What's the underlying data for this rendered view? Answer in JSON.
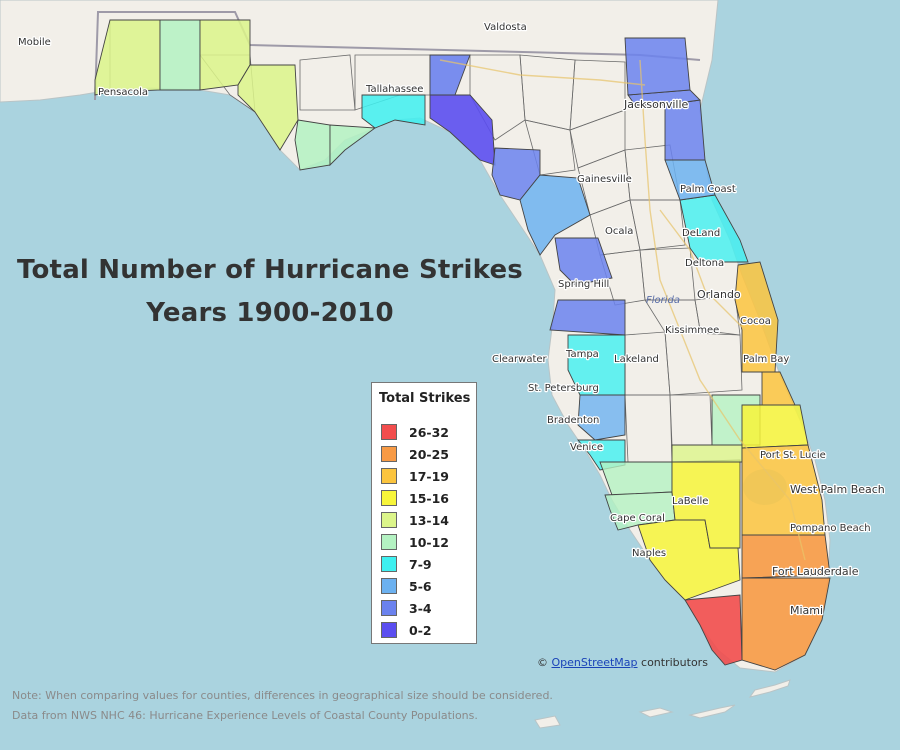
{
  "title": {
    "line1": "Total Number of Hurricane Strikes",
    "line2": "Years 1900-2010"
  },
  "legend": {
    "title": "Total Strikes",
    "items": [
      {
        "label": "26-32",
        "color": "#f24d4d"
      },
      {
        "label": "20-25",
        "color": "#f79a45"
      },
      {
        "label": "17-19",
        "color": "#fbc43e"
      },
      {
        "label": "15-16",
        "color": "#f7f53a"
      },
      {
        "label": "13-14",
        "color": "#dcf58a"
      },
      {
        "label": "10-12",
        "color": "#b4f2c2"
      },
      {
        "label": "7-9",
        "color": "#3ef0f0"
      },
      {
        "label": "5-6",
        "color": "#6cb1f0"
      },
      {
        "label": "3-4",
        "color": "#6b82ee"
      },
      {
        "label": "0-2",
        "color": "#5b4ef0"
      }
    ]
  },
  "places": {
    "mobile": "Mobile",
    "pensacola": "Pensacola",
    "valdosta": "Valdosta",
    "tallahassee": "Tallahassee",
    "jacksonville": "Jacksonville",
    "gainesville": "Gainesville",
    "palm_coast": "Palm Coast",
    "ocala": "Ocala",
    "deland": "DeLand",
    "deltona": "Deltona",
    "spring_hill": "Spring Hill",
    "florida": "Florida",
    "orlando": "Orlando",
    "cocoa": "Cocoa",
    "kissimmee": "Kissimmee",
    "clearwater": "Clearwater",
    "tampa": "Tampa",
    "lakeland": "Lakeland",
    "palm_bay": "Palm Bay",
    "st_petersburg": "St. Petersburg",
    "bradenton": "Bradenton",
    "venice": "Venice",
    "port_st_lucie": "Port St. Lucie",
    "labelle": "LaBelle",
    "west_palm_beach": "West Palm Beach",
    "cape_coral": "Cape Coral",
    "pompano_beach": "Pompano Beach",
    "naples": "Naples",
    "fort_lauderdale": "Fort Lauderdale",
    "miami": "Miami"
  },
  "attribution": {
    "prefix": "©",
    "link": "OpenStreetMap",
    "suffix": "contributors"
  },
  "notes": {
    "line1": "Note: When comparing values for counties, differences in geographical size should be considered.",
    "line2": "Data from NWS NHC 46: Hurricane Experience Levels of Coastal County Populations."
  },
  "colors": {
    "water": "#aad3df",
    "land": "#f2efe9",
    "county_border": "#555555",
    "state_border": "#9e9aa8"
  }
}
